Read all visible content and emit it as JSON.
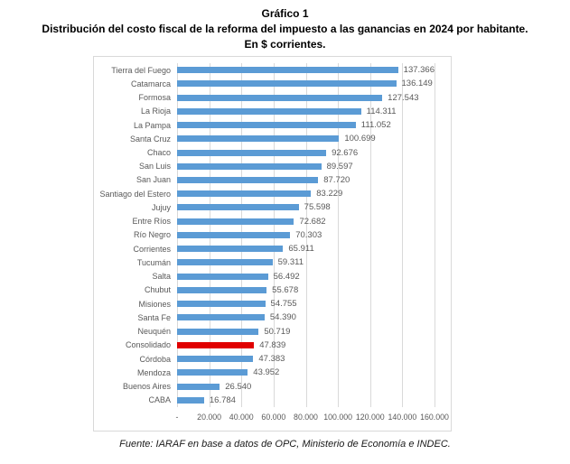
{
  "title": {
    "line1": "Gráfico 1",
    "line2": "Distribución del costo fiscal de la reforma del impuesto a las ganancias en 2024 por habitante.",
    "line3": "En $ corrientes."
  },
  "footer": "Fuente: IARAF en base a datos de OPC, Ministerio de Economía e INDEC.",
  "colors": {
    "bar": "#5b9bd5",
    "highlight_bar": "#e00000",
    "gridline": "#d9d9d9",
    "chart_border": "#d9d9d9",
    "label_text": "#595959"
  },
  "chart_data": {
    "type": "bar",
    "orientation": "horizontal",
    "title": "Gráfico 1 — Distribución del costo fiscal de la reforma del impuesto a las ganancias en 2024 por habitante. En $ corrientes.",
    "categories": [
      "Tierra del Fuego",
      "Catamarca",
      "Formosa",
      "La Rioja",
      "La Pampa",
      "Santa Cruz",
      "Chaco",
      "San Luis",
      "San Juan",
      "Santiago del Estero",
      "Jujuy",
      "Entre Ríos",
      "Río Negro",
      "Corrientes",
      "Tucumán",
      "Salta",
      "Chubut",
      "Misiones",
      "Santa Fe",
      "Neuquén",
      "Consolidado",
      "Córdoba",
      "Mendoza",
      "Buenos Aires",
      "CABA"
    ],
    "values": [
      137366,
      136149,
      127543,
      114311,
      111052,
      100699,
      92676,
      89597,
      87720,
      83229,
      75598,
      72682,
      70303,
      65911,
      59311,
      56492,
      55678,
      54755,
      54390,
      50719,
      47839,
      47383,
      43952,
      26540,
      16784
    ],
    "value_labels": [
      "137.366",
      "136.149",
      "127.543",
      "114.311",
      "111.052",
      "100.699",
      "92.676",
      "89.597",
      "87.720",
      "83.229",
      "75.598",
      "72.682",
      "70.303",
      "65.911",
      "59.311",
      "56.492",
      "55.678",
      "54.755",
      "54.390",
      "50.719",
      "47.839",
      "47.383",
      "43.952",
      "26.540",
      "16.784"
    ],
    "highlight_category": "Consolidado",
    "x_axis": {
      "tick_labels": [
        "-",
        "20.000",
        "40.000",
        "60.000",
        "80.000",
        "100.000",
        "120.000",
        "140.000",
        "160.000"
      ],
      "tick_values": [
        0,
        20000,
        40000,
        60000,
        80000,
        100000,
        120000,
        140000,
        160000
      ],
      "min": 0,
      "max": 160000
    },
    "grid": true,
    "legend": false
  }
}
